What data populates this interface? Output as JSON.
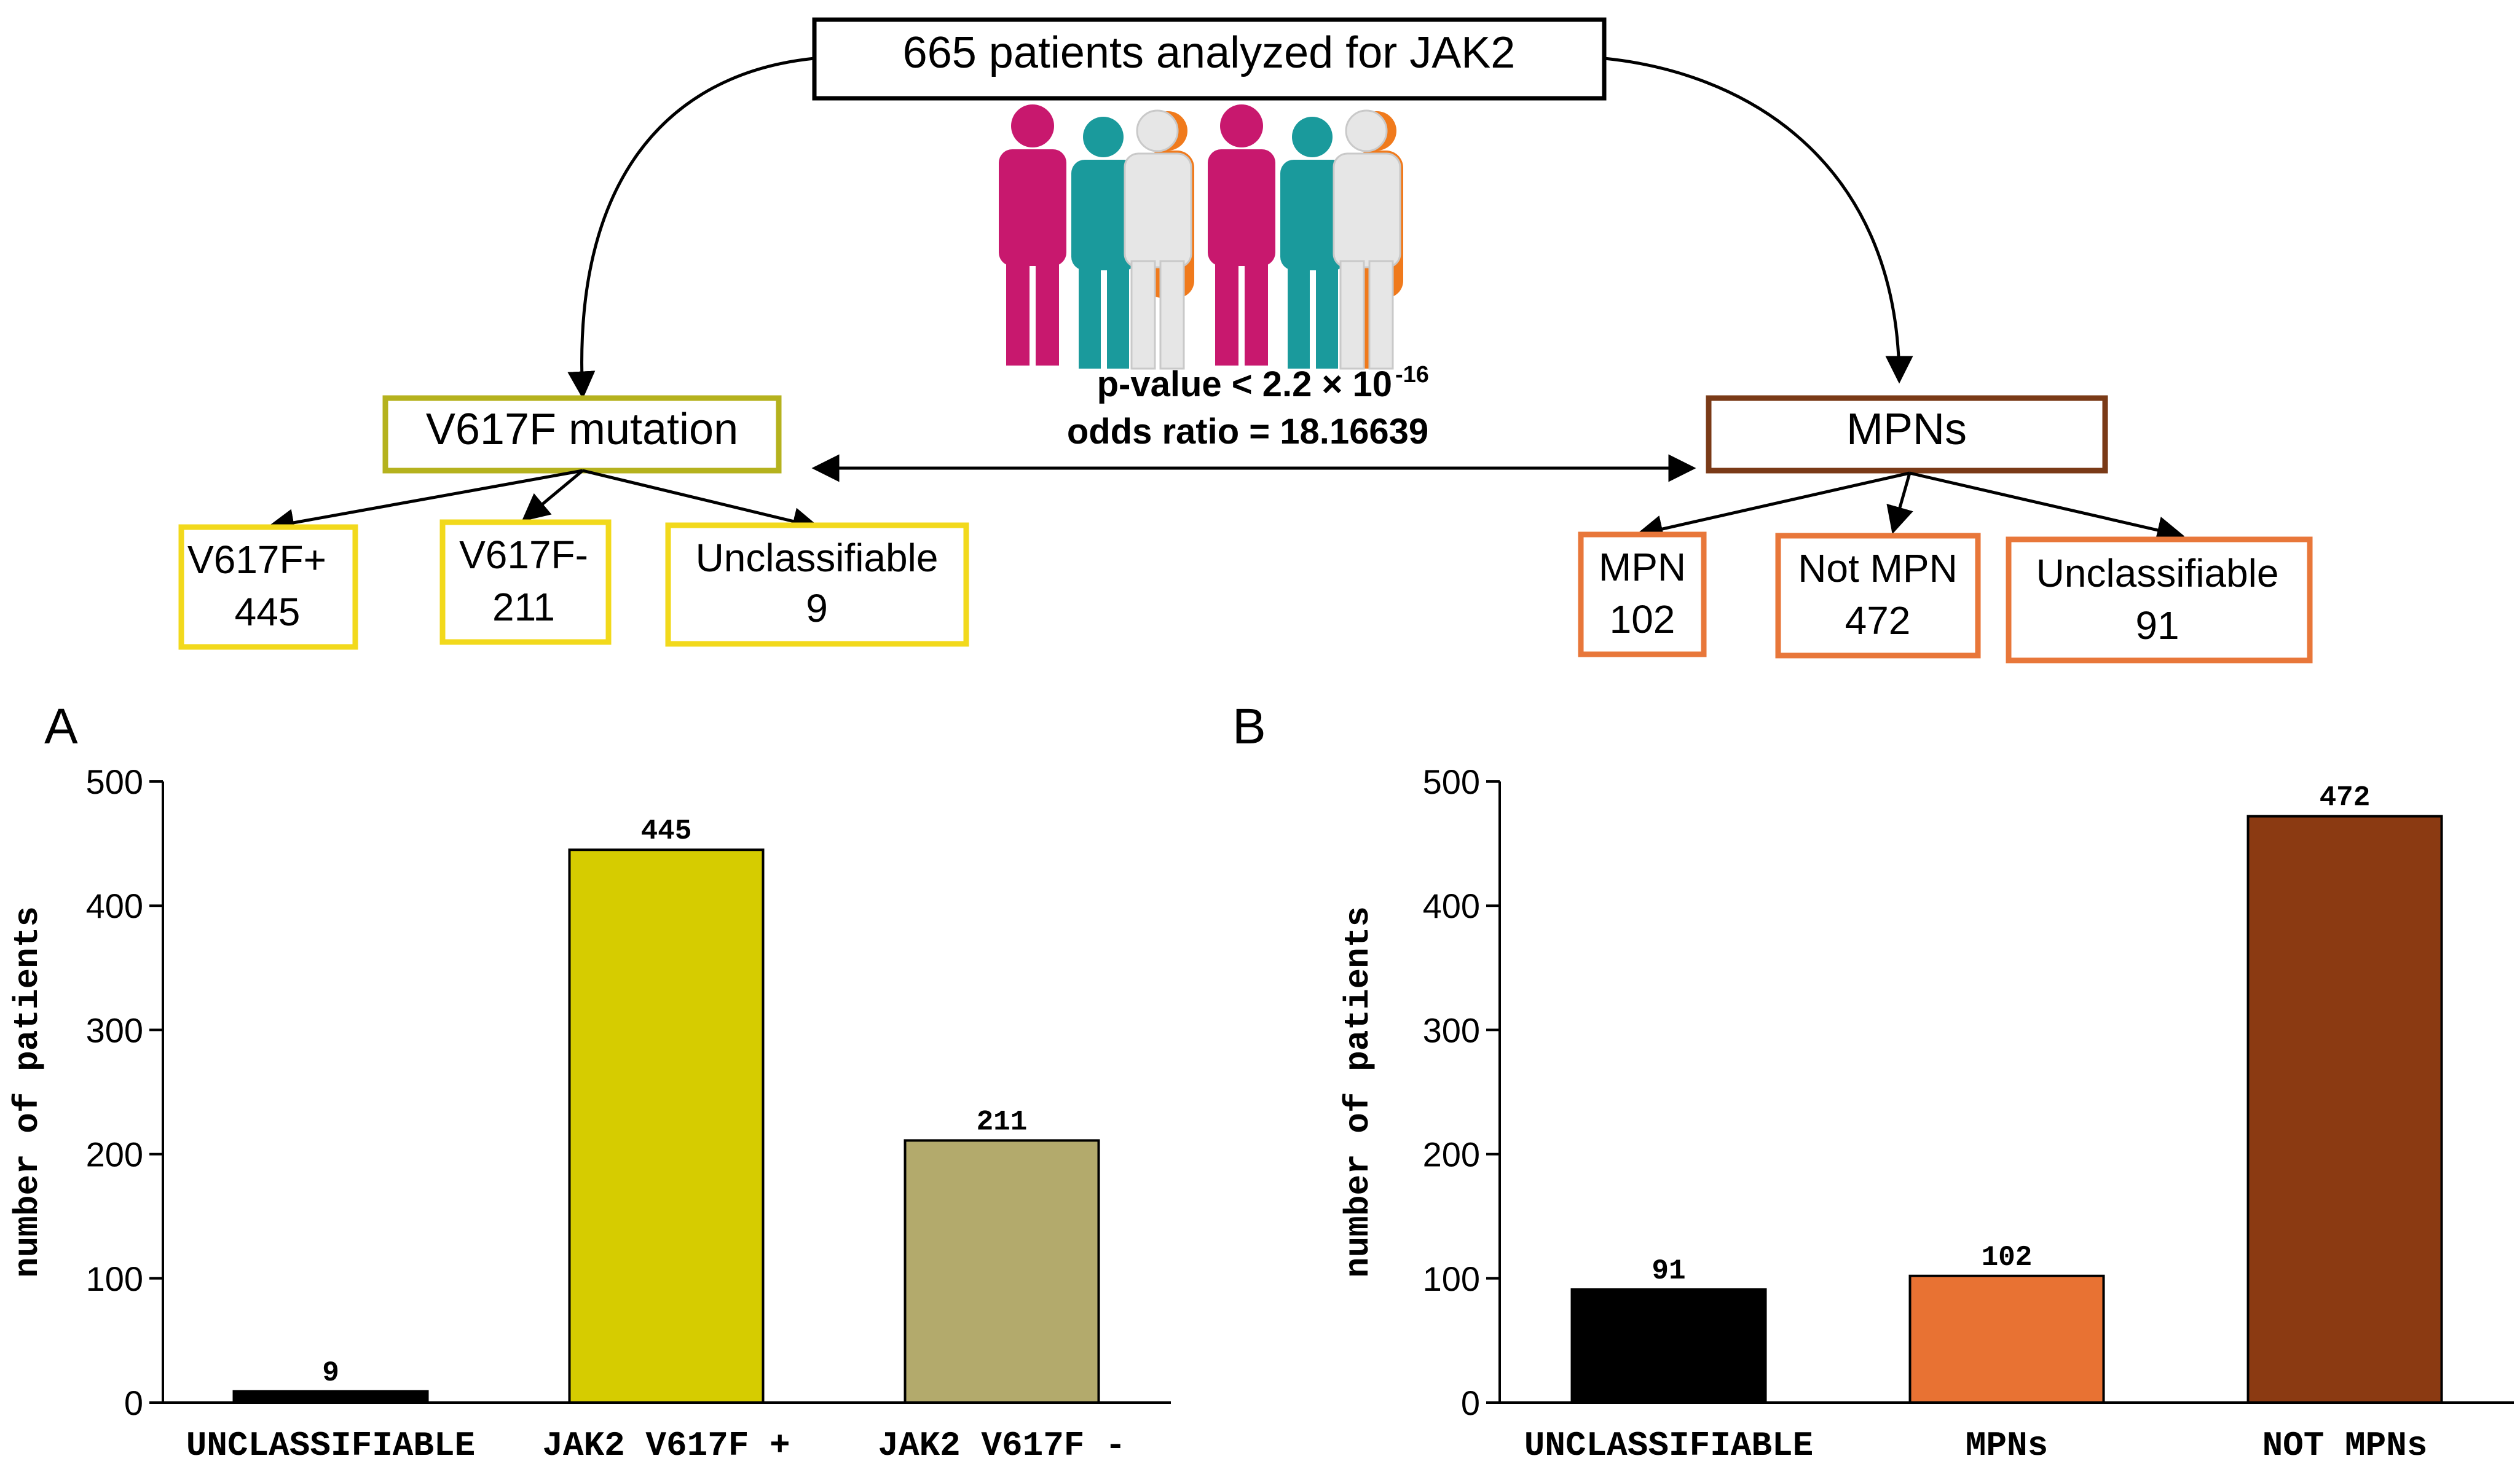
{
  "flow": {
    "top_box": "665 patients analyzed for JAK2",
    "stats": {
      "pvalue_prefix": "p-value < 2.2 × 10",
      "pvalue_exponent": "-16",
      "odds_ratio": "odds ratio = 18.16639"
    },
    "left_box": "V617F mutation",
    "right_box": "MPNs",
    "left_children": [
      {
        "label": "V617F+",
        "value": "445"
      },
      {
        "label": "V617F-",
        "value": "211"
      },
      {
        "label": "Unclassifiable",
        "value": "9"
      }
    ],
    "right_children": [
      {
        "label": "MPN",
        "value": "102"
      },
      {
        "label": "Not MPN",
        "value": "472"
      },
      {
        "label": "Unclassifiable",
        "value": "91"
      }
    ],
    "colors": {
      "left_box_border": "#b5b21e",
      "left_child_border": "#f2d91c",
      "right_box_border": "#7a3a17",
      "right_child_border": "#e8773a",
      "person_magenta": "#c8186e",
      "person_teal": "#1a9a9c",
      "person_white": "#e6e6e6",
      "person_orange": "#f07a1c"
    }
  },
  "chart_data": [
    {
      "panel": "A",
      "type": "bar",
      "categories": [
        "UNCLASSIFIABLE",
        "JAK2 V617F +",
        "JAK2 V617F -"
      ],
      "values": [
        9,
        445,
        211
      ],
      "data_labels": [
        "9",
        "445",
        "211"
      ],
      "colors": [
        "#000000",
        "#d6cc00",
        "#b3aa6c"
      ],
      "title": "",
      "xlabel": "",
      "ylabel": "number of patients",
      "ylim": [
        0,
        500
      ],
      "yticks": [
        0,
        100,
        200,
        300,
        400,
        500
      ],
      "grid": false
    },
    {
      "panel": "B",
      "type": "bar",
      "categories": [
        "UNCLASSIFIABLE",
        "MPNs",
        "NOT MPNs"
      ],
      "values": [
        91,
        102,
        472
      ],
      "data_labels": [
        "91",
        "102",
        "472"
      ],
      "colors": [
        "#000000",
        "#e87233",
        "#8b3a12"
      ],
      "title": "",
      "xlabel": "",
      "ylabel": "number of patients",
      "ylim": [
        0,
        500
      ],
      "yticks": [
        0,
        100,
        200,
        300,
        400,
        500
      ],
      "grid": false
    }
  ]
}
